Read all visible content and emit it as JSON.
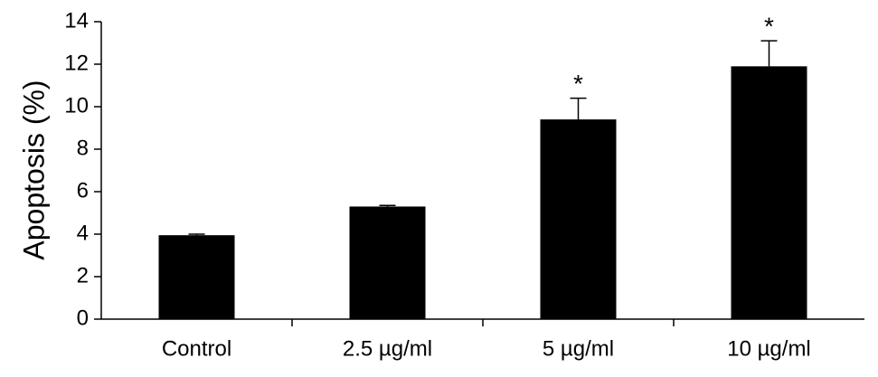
{
  "chart_data": {
    "type": "bar",
    "y_label": "Apoptosis (%)",
    "categories": [
      "Control",
      "2.5 µg/ml",
      "5 µg/ml",
      "10 µg/ml"
    ],
    "values": [
      3.95,
      5.3,
      9.4,
      11.9
    ],
    "errors": [
      0.05,
      0.05,
      1.0,
      1.2
    ],
    "annotations": [
      null,
      null,
      "*",
      "*"
    ],
    "color": "#000000",
    "ylim": [
      0,
      14
    ],
    "yticks": [
      0,
      2,
      4,
      6,
      8,
      10,
      12,
      14
    ],
    "grid": false
  }
}
